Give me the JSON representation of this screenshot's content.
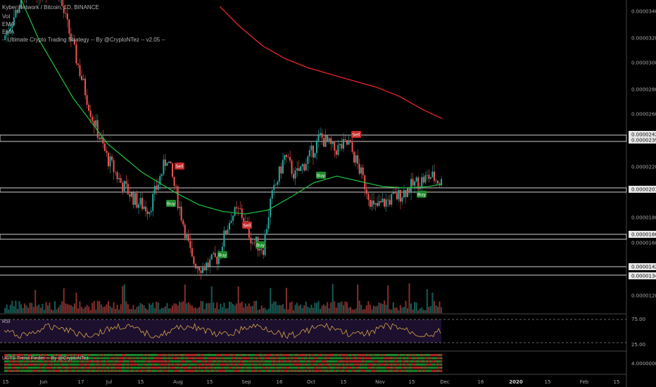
{
  "header": {
    "symbol_line": "Kyber Network / Bitcoin, 1D, BINANCE",
    "vol_label": "Vol",
    "ema1_label": "EMA",
    "ema2_label": "EMA",
    "strategy_label": "-- Ultimate Crypto Trading Strategy -- By @CryptoNTez -- v2.05 --"
  },
  "rsi_pane": {
    "label": "RSI",
    "levels": [
      "75.00",
      "25.00"
    ]
  },
  "trend_pane": {
    "label": "UCTS Trend Finder -- By @CryptoNTez",
    "value": "4.00000000"
  },
  "colors": {
    "up": "#26a69a",
    "down": "#ef5350",
    "ema_fast": "#1fb83a",
    "ema_slow": "#e8252a",
    "buy_bg": "#1e8a2c",
    "sell_bg": "#c62828",
    "level_band": "#9e9e9e"
  },
  "chart_data": {
    "type": "candlestick",
    "price_axis_labels": [
      "0.00003400",
      "0.00003200",
      "0.00003000",
      "0.00002800",
      "0.00002600",
      "0.00002422",
      "0.00002399",
      "0.00002200",
      "0.00002018",
      "0.00001800",
      "0.00001665",
      "0.00001600",
      "0.00001422",
      "0.00001347",
      "0.00001200"
    ],
    "horizontal_levels": [
      "0.00002422",
      "0.00002399",
      "0.00002018",
      "0.00001665",
      "0.00001422",
      "0.00001347"
    ],
    "time_axis_labels": [
      "15",
      "Jun",
      "17",
      "Jul",
      "15",
      "Aug",
      "15",
      "Sep",
      "16",
      "Oct",
      "15",
      "Nov",
      "15",
      "Dec",
      "16",
      "2020",
      "15",
      "Feb",
      "15"
    ],
    "emas": [
      {
        "name": "EMA",
        "color": "#1fb83a",
        "points": [
          [
            0,
            3.8
          ],
          [
            30,
            3.2
          ],
          [
            60,
            2.75
          ],
          [
            90,
            2.4
          ],
          [
            120,
            2.18
          ],
          [
            150,
            2.02
          ],
          [
            170,
            1.93
          ],
          [
            190,
            1.88
          ],
          [
            210,
            1.86
          ],
          [
            230,
            1.89
          ],
          [
            250,
            1.99
          ],
          [
            270,
            2.1
          ],
          [
            290,
            2.15
          ],
          [
            310,
            2.11
          ],
          [
            330,
            2.07
          ],
          [
            350,
            2.06
          ],
          [
            370,
            2.07
          ],
          [
            382,
            2.09
          ]
        ]
      },
      {
        "name": "EMA",
        "color": "#e8252a",
        "points": [
          [
            188,
            3.45
          ],
          [
            205,
            3.3
          ],
          [
            225,
            3.15
          ],
          [
            245,
            3.05
          ],
          [
            265,
            2.98
          ],
          [
            285,
            2.93
          ],
          [
            305,
            2.88
          ],
          [
            325,
            2.83
          ],
          [
            345,
            2.76
          ],
          [
            365,
            2.66
          ],
          [
            382,
            2.59
          ]
        ]
      }
    ],
    "signals": [
      {
        "label": "Sell",
        "type": "sell"
      },
      {
        "label": "Buy",
        "type": "buy"
      },
      {
        "label": "Sell",
        "type": "sell"
      },
      {
        "label": "Buy",
        "type": "buy"
      },
      {
        "label": "Buy",
        "type": "buy"
      },
      {
        "label": "Buy",
        "type": "buy"
      },
      {
        "label": "Sell",
        "type": "sell"
      },
      {
        "label": "Buy",
        "type": "buy"
      }
    ],
    "rsi_range": [
      0,
      100
    ],
    "price_range": [
      1.1,
      3.5
    ],
    "price_unit": "e-5 BTC"
  }
}
